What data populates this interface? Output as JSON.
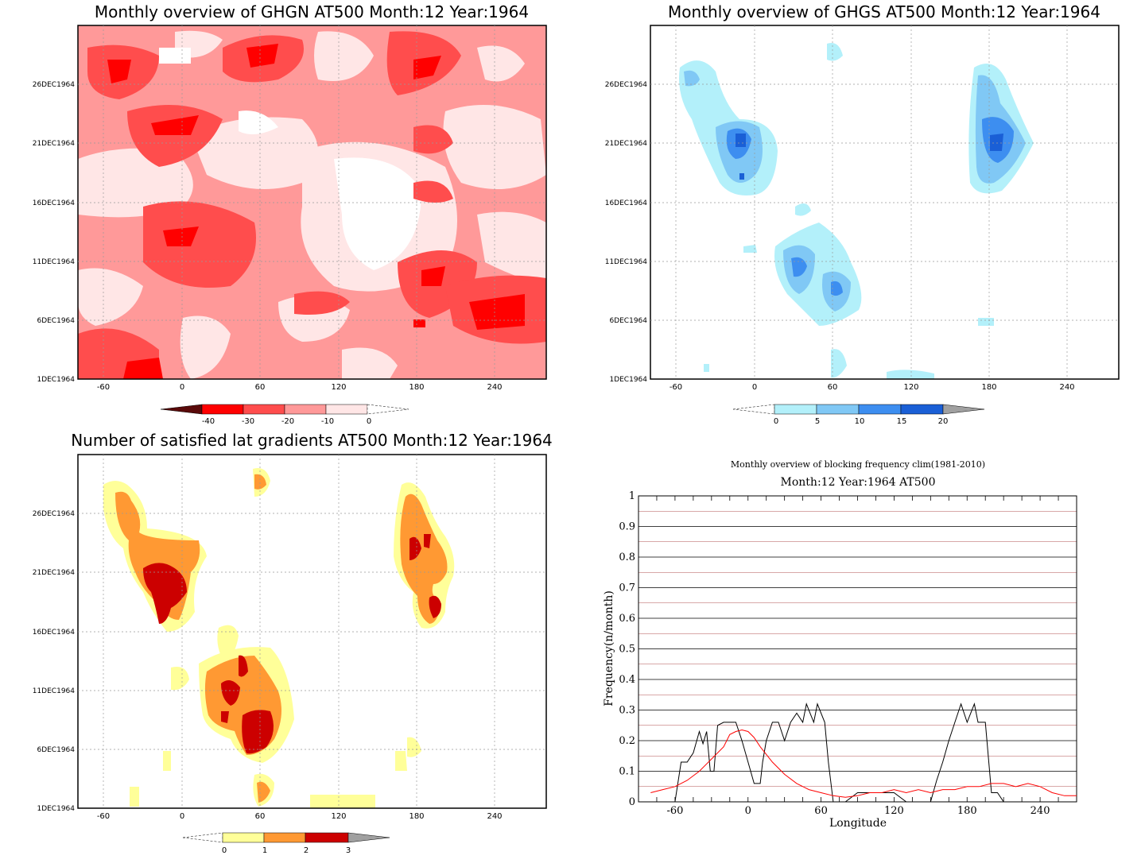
{
  "panels": {
    "ghgn": {
      "title": "Monthly overview of GHGN AT500 Month:12 Year:1964",
      "y_ticks": [
        "26DEC1964",
        "21DEC1964",
        "16DEC1964",
        "11DEC1964",
        "6DEC1964",
        "1DEC1964"
      ],
      "x_ticks": [
        "-60",
        "0",
        "60",
        "120",
        "180",
        "240"
      ],
      "colorbar": {
        "labels": [
          "-40",
          "-30",
          "-20",
          "-10",
          "0"
        ],
        "colors": [
          "#5a0a0a",
          "#ff0000",
          "#ff4d4d",
          "#ff9999",
          "#ffe6e6"
        ]
      }
    },
    "ghgs": {
      "title": "Monthly overview of GHGS AT500 Month:12 Year:1964",
      "y_ticks": [
        "26DEC1964",
        "21DEC1964",
        "16DEC1964",
        "11DEC1964",
        "6DEC1964",
        "1DEC1964"
      ],
      "x_ticks": [
        "-60",
        "0",
        "60",
        "120",
        "180",
        "240"
      ],
      "colorbar": {
        "labels": [
          "0",
          "5",
          "10",
          "15",
          "20"
        ],
        "colors": [
          "#b3f0fa",
          "#80c8f5",
          "#3d8ef0",
          "#1a5fd6",
          "#a0a0a0"
        ]
      }
    },
    "lat": {
      "title": "Number of satisfied lat gradients AT500 Month:12 Year:1964",
      "y_ticks": [
        "26DEC1964",
        "21DEC1964",
        "16DEC1964",
        "11DEC1964",
        "6DEC1964",
        "1DEC1964"
      ],
      "x_ticks": [
        "-60",
        "0",
        "60",
        "120",
        "180",
        "240"
      ],
      "colorbar": {
        "labels": [
          "0",
          "1",
          "2",
          "3"
        ],
        "colors": [
          "#ffff99",
          "#ff9933",
          "#cc0000",
          "#a0a0a0"
        ]
      }
    }
  },
  "chart_data": [
    {
      "type": "line",
      "title": "Monthly overview of blocking frequency clim(1981-2010)",
      "subtitle": "Month:12 Year:1964  AT500",
      "xlabel": "Longitude",
      "ylabel": "Frequency(n/month)",
      "xlim": [
        -90,
        270
      ],
      "ylim": [
        0,
        1
      ],
      "x_ticks": [
        "-60",
        "0",
        "60",
        "120",
        "180",
        "240"
      ],
      "y_ticks": [
        "0",
        "0.1",
        "0.2",
        "0.3",
        "0.4",
        "0.5",
        "0.6",
        "0.7",
        "0.8",
        "0.9",
        "1"
      ],
      "grid": true,
      "series": [
        {
          "color": "#000000",
          "x": [
            -60,
            -55,
            -50,
            -45,
            -40,
            -37,
            -34,
            -31,
            -28,
            -25,
            -20,
            -15,
            -10,
            -5,
            0,
            5,
            10,
            12,
            15,
            20,
            25,
            30,
            35,
            40,
            45,
            48,
            51,
            54,
            57,
            60,
            63,
            66,
            70,
            75,
            80,
            90,
            100,
            110,
            120,
            130,
            140,
            150,
            155,
            160,
            165,
            170,
            175,
            180,
            183,
            186,
            189,
            192,
            195,
            200,
            205,
            210,
            215
          ],
          "y": [
            0.0,
            0.13,
            0.13,
            0.16,
            0.23,
            0.19,
            0.23,
            0.1,
            0.1,
            0.25,
            0.26,
            0.26,
            0.26,
            0.2,
            0.13,
            0.06,
            0.06,
            0.13,
            0.2,
            0.26,
            0.26,
            0.2,
            0.26,
            0.29,
            0.26,
            0.32,
            0.29,
            0.26,
            0.32,
            0.29,
            0.26,
            0.13,
            0.0,
            0.0,
            0.0,
            0.03,
            0.03,
            0.03,
            0.03,
            0.0,
            0.0,
            0.0,
            0.07,
            0.13,
            0.2,
            0.26,
            0.32,
            0.26,
            0.29,
            0.32,
            0.26,
            0.26,
            0.26,
            0.03,
            0.03,
            0.0,
            0.0
          ]
        },
        {
          "color": "#ff0000",
          "x": [
            -80,
            -70,
            -60,
            -50,
            -40,
            -30,
            -20,
            -15,
            -10,
            -5,
            0,
            5,
            10,
            20,
            30,
            40,
            50,
            60,
            70,
            80,
            90,
            100,
            110,
            120,
            130,
            140,
            150,
            160,
            170,
            180,
            190,
            200,
            210,
            220,
            230,
            240,
            250,
            260,
            270
          ],
          "y": [
            0.03,
            0.04,
            0.05,
            0.07,
            0.1,
            0.14,
            0.18,
            0.22,
            0.23,
            0.235,
            0.23,
            0.21,
            0.18,
            0.13,
            0.09,
            0.06,
            0.04,
            0.03,
            0.02,
            0.015,
            0.02,
            0.03,
            0.03,
            0.04,
            0.03,
            0.04,
            0.03,
            0.04,
            0.04,
            0.05,
            0.05,
            0.06,
            0.06,
            0.05,
            0.06,
            0.05,
            0.03,
            0.02,
            0.02
          ]
        }
      ]
    }
  ]
}
